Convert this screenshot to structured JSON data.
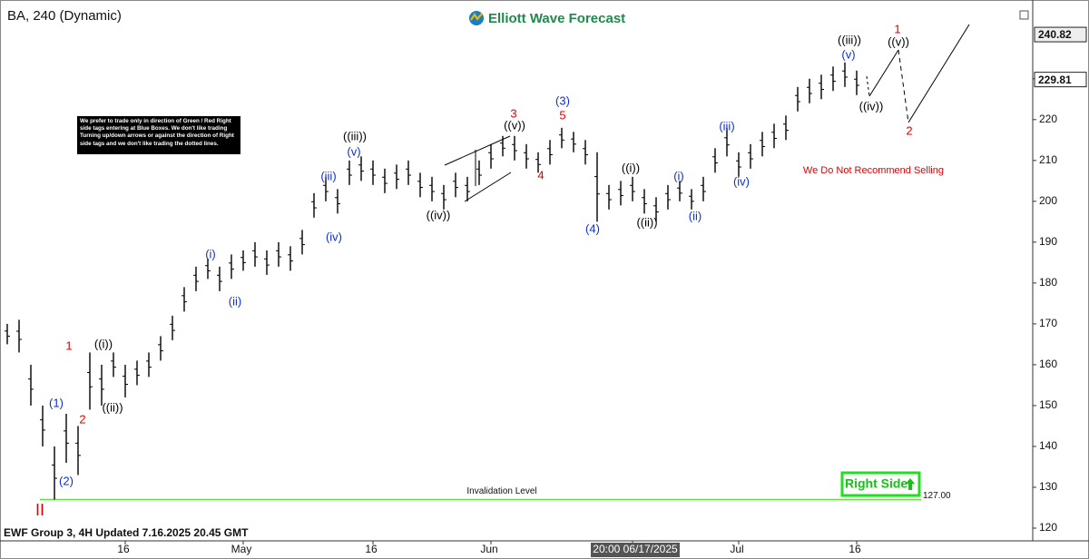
{
  "chart_data": {
    "type": "ohlc",
    "title": "BA, 240 (Dynamic)",
    "brand": "Elliott Wave Forecast",
    "footer": "EWF Group 3, 4H Updated 7.16.2025 20.45 GMT",
    "note": [
      "We prefer to trade only in direction of Green / Red Right",
      "side tags entering at Blue Boxes. We don't like trading",
      "Turning up/down arrows or against the direction of Right",
      "side tags and we don't like trading the dotted lines."
    ],
    "warning": "We Do Not Recommend Selling",
    "right_side": "Right Side",
    "color": "#000000",
    "categories": [
      null,
      null,
      null,
      null,
      null,
      null,
      null,
      null,
      null,
      null,
      "16",
      null,
      null,
      null,
      null,
      null,
      null,
      null,
      null,
      null,
      "May",
      null,
      null,
      null,
      null,
      null,
      null,
      null,
      null,
      null,
      null,
      "16",
      null,
      null,
      null,
      null,
      null,
      null,
      null,
      null,
      null,
      "Jun",
      null,
      null,
      null,
      null,
      null,
      null,
      null,
      null,
      null,
      null,
      null,
      "20:00 06/17/2025",
      null,
      null,
      null,
      null,
      null,
      null,
      null,
      null,
      "Jul",
      null,
      null,
      null,
      null,
      null,
      null,
      null,
      null,
      null,
      "16"
    ],
    "high": [
      170,
      171,
      160,
      150,
      140,
      148,
      145,
      163,
      160,
      163,
      160,
      161,
      163,
      167,
      172,
      179,
      184,
      186,
      184,
      187,
      188,
      190,
      188,
      190,
      189,
      193,
      202,
      206,
      203,
      210,
      211,
      210,
      208,
      209,
      210,
      207,
      206,
      204,
      207,
      206,
      210,
      214,
      216,
      216,
      214,
      212,
      215,
      218,
      217,
      215,
      212,
      204,
      205,
      206,
      203,
      201,
      204,
      205,
      203,
      206,
      213,
      218,
      212,
      214,
      217,
      219,
      221,
      228,
      230,
      231,
      233,
      234,
      232
    ],
    "low": [
      165,
      163,
      150,
      140,
      127,
      136,
      133,
      149,
      150,
      157,
      152,
      155,
      157,
      161,
      166,
      173,
      178,
      181,
      178,
      181,
      183,
      184,
      182,
      184,
      183,
      187,
      196,
      200,
      197,
      204,
      205,
      204,
      202,
      203,
      204,
      201,
      200,
      198,
      201,
      200,
      204,
      208,
      211,
      210,
      208,
      207,
      209,
      213,
      212,
      209,
      195,
      198,
      199,
      200,
      197,
      195,
      198,
      200,
      198,
      200,
      207,
      211,
      206,
      208,
      211,
      213,
      215,
      222,
      224,
      225,
      227,
      228,
      226
    ],
    "ylim": [
      117,
      247.5
    ],
    "yticks": [
      120,
      130,
      140,
      150,
      160,
      170,
      180,
      190,
      200,
      210,
      220,
      230
    ],
    "price_tags": [
      {
        "value": 240.82,
        "label": "240.82"
      },
      {
        "value": 229.81,
        "label": "229.81"
      }
    ],
    "level": {
      "name": "Invalidation Level",
      "value": 127,
      "label": "127.00",
      "color": "#66dd44"
    },
    "annotations": [
      {
        "text": "II",
        "color": "#e00000"
      },
      {
        "text": "(1)",
        "color": "#1030d0"
      },
      {
        "text": "(2)",
        "color": "#1030d0"
      },
      {
        "text": "1",
        "color": "#e00000"
      },
      {
        "text": "2",
        "color": "#e00000"
      },
      {
        "text": "((i))",
        "color": "#000000"
      },
      {
        "text": "((ii))",
        "color": "#000000"
      },
      {
        "text": "(i)",
        "color": "#1030d0"
      },
      {
        "text": "(ii)",
        "color": "#1030d0"
      },
      {
        "text": "(iii)",
        "color": "#1030d0"
      },
      {
        "text": "(iv)",
        "color": "#1030d0"
      },
      {
        "text": "((iii))",
        "color": "#000000"
      },
      {
        "text": "(v)",
        "color": "#1030d0"
      },
      {
        "text": "((iv))",
        "color": "#000000"
      },
      {
        "text": "((v))",
        "color": "#000000"
      },
      {
        "text": "3",
        "color": "#e00000"
      },
      {
        "text": "4",
        "color": "#e00000"
      },
      {
        "text": "5",
        "color": "#e00000"
      },
      {
        "text": "(3)",
        "color": "#1030d0"
      },
      {
        "text": "(4)",
        "color": "#1030d0"
      },
      {
        "text": "((i))",
        "color": "#000000"
      },
      {
        "text": "((ii))",
        "color": "#000000"
      },
      {
        "text": "(i)",
        "color": "#1030d0"
      },
      {
        "text": "(ii)",
        "color": "#1030d0"
      },
      {
        "text": "(iii)",
        "color": "#1030d0"
      },
      {
        "text": "(iv)",
        "color": "#1030d0"
      },
      {
        "text": "((iii))",
        "color": "#000000"
      },
      {
        "text": "(v)",
        "color": "#1030d0"
      },
      {
        "text": "((iv))",
        "color": "#000000"
      },
      {
        "text": "1",
        "color": "#e00000"
      },
      {
        "text": "((v))",
        "color": "#000000"
      },
      {
        "text": "2",
        "color": "#e00000"
      }
    ]
  }
}
